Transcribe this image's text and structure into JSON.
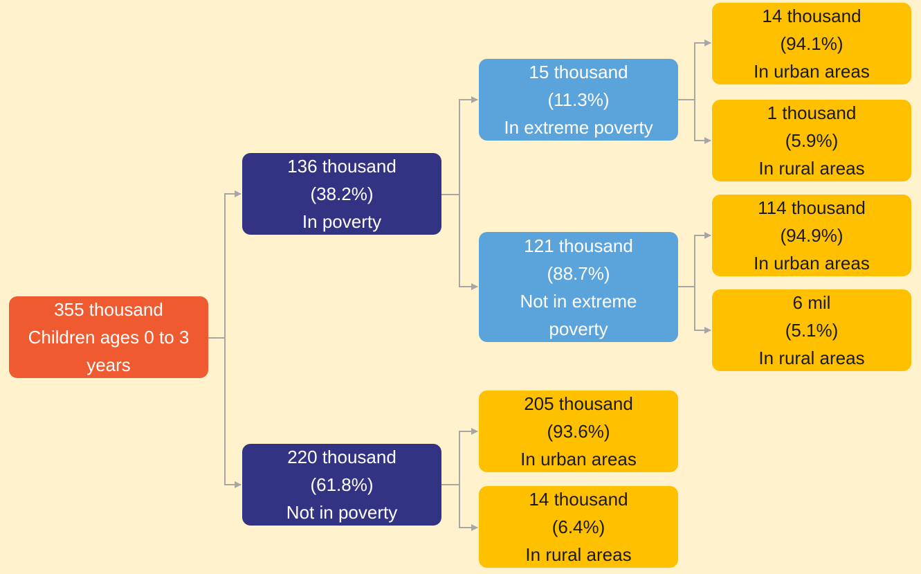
{
  "colors": {
    "background": "#fff2cc",
    "root": "#f05a30",
    "poverty_split": "#333383",
    "extreme_split": "#5ba3db",
    "area_split": "#ffc000",
    "connector": "#a6a6a6"
  },
  "tree": {
    "root": {
      "value": "355 thousand",
      "label_1": "Children ages 0 to 3",
      "label_2": "years"
    },
    "in_poverty": {
      "value": "136 thousand",
      "pct": "(38.2%)",
      "label": "In poverty"
    },
    "not_in_poverty": {
      "value": "220 thousand",
      "pct": "(61.8%)",
      "label": "Not in poverty"
    },
    "extreme_poverty": {
      "value": "15 thousand",
      "pct": "(11.3%)",
      "label": "In extreme poverty"
    },
    "not_extreme_poverty": {
      "value": "121 thousand",
      "pct": "(88.7%)",
      "label_1": "Not in extreme",
      "label_2": "poverty"
    },
    "extreme_urban": {
      "value": "14 thousand",
      "pct": "(94.1%)",
      "label": "In urban areas"
    },
    "extreme_rural": {
      "value": "1 thousand",
      "pct": "(5.9%)",
      "label": "In rural areas"
    },
    "not_extreme_urban": {
      "value": "114 thousand",
      "pct": "(94.9%)",
      "label": "In urban areas"
    },
    "not_extreme_rural": {
      "value": "6 mil",
      "pct": "(5.1%)",
      "label": "In rural areas"
    },
    "not_poverty_urban": {
      "value": "205 thousand",
      "pct": "(93.6%)",
      "label": "In urban areas"
    },
    "not_poverty_rural": {
      "value": "14 thousand",
      "pct": "(6.4%)",
      "label": "In rural areas"
    }
  }
}
